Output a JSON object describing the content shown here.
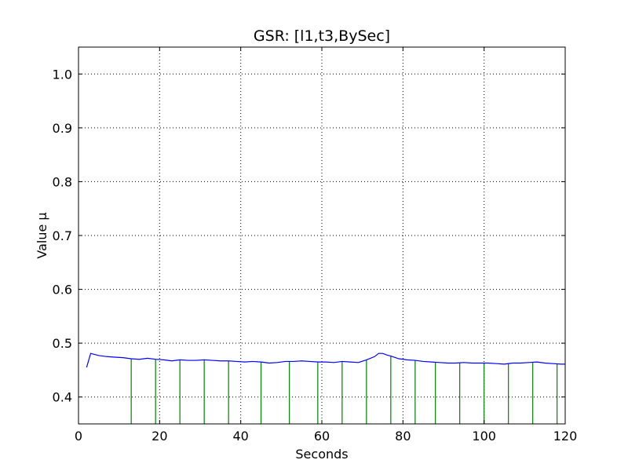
{
  "chart_data": {
    "type": "line",
    "title": "GSR: [l1,t3,BySec]",
    "xlabel": "Seconds",
    "ylabel": "Value μ",
    "xlim": [
      0,
      120
    ],
    "ylim": [
      0.35,
      1.05
    ],
    "x_ticks": [
      0,
      20,
      40,
      60,
      80,
      100,
      120
    ],
    "y_ticks": [
      0.4,
      0.5,
      0.6,
      0.7,
      0.8,
      0.9,
      1.0
    ],
    "x_tick_labels": [
      "0",
      "20",
      "40",
      "60",
      "80",
      "100",
      "120"
    ],
    "y_tick_labels": [
      "0.4",
      "0.5",
      "0.6",
      "0.7",
      "0.8",
      "0.9",
      "1.0"
    ],
    "grid": true,
    "series": [
      {
        "color": "#0000ff",
        "x": [
          2,
          3,
          5,
          7,
          9,
          11,
          13,
          15,
          17,
          19,
          21,
          23,
          25,
          27,
          29,
          31,
          33,
          35,
          37,
          39,
          41,
          43,
          45,
          47,
          49,
          51,
          53,
          55,
          57,
          59,
          61,
          63,
          65,
          67,
          69,
          71,
          73,
          74,
          75,
          76,
          77,
          79,
          81,
          83,
          85,
          87,
          89,
          91,
          93,
          95,
          97,
          99,
          101,
          103,
          105,
          107,
          109,
          111,
          113,
          115,
          117,
          119,
          120
        ],
        "y": [
          0.455,
          0.481,
          0.477,
          0.475,
          0.474,
          0.473,
          0.471,
          0.47,
          0.472,
          0.47,
          0.469,
          0.467,
          0.469,
          0.468,
          0.468,
          0.469,
          0.468,
          0.467,
          0.467,
          0.466,
          0.465,
          0.466,
          0.465,
          0.463,
          0.464,
          0.466,
          0.466,
          0.467,
          0.466,
          0.465,
          0.465,
          0.464,
          0.466,
          0.465,
          0.464,
          0.469,
          0.475,
          0.481,
          0.481,
          0.478,
          0.476,
          0.471,
          0.469,
          0.468,
          0.466,
          0.465,
          0.464,
          0.463,
          0.463,
          0.464,
          0.463,
          0.463,
          0.463,
          0.462,
          0.461,
          0.463,
          0.463,
          0.464,
          0.465,
          0.463,
          0.462,
          0.461,
          0.461
        ]
      }
    ],
    "event_markers": {
      "color": "#008000",
      "x": [
        13,
        19,
        25,
        31,
        37,
        45,
        52,
        59,
        65,
        71,
        77,
        83,
        88,
        94,
        100,
        106,
        112,
        118
      ]
    }
  }
}
